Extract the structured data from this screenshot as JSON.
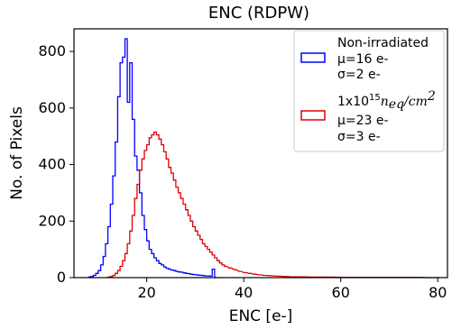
{
  "chart_data": {
    "type": "histogram",
    "title": "ENC (RDPW)",
    "xlabel": "ENC [e-]",
    "ylabel": "No. of Pixels",
    "xlim": [
      5,
      82
    ],
    "ylim": [
      0,
      880
    ],
    "xticks": [
      20,
      40,
      60,
      80
    ],
    "yticks": [
      0,
      200,
      400,
      600,
      800
    ],
    "grid": false,
    "legend_position": "top-right",
    "bin_width": 0.5,
    "series": [
      {
        "name": "Non-irradiated",
        "stats": [
          "μ=16 e-",
          "σ=2 e-"
        ],
        "color": "#0000ff",
        "x": [
          8,
          8.5,
          9,
          9.5,
          10,
          10.5,
          11,
          11.5,
          12,
          12.5,
          13,
          13.5,
          14,
          14.5,
          15,
          15.5,
          16,
          16.5,
          17,
          17.5,
          18,
          18.5,
          19,
          19.5,
          20,
          20.5,
          21,
          21.5,
          22,
          22.5,
          23,
          23.5,
          24,
          24.5,
          25,
          25.5,
          26,
          26.5,
          27,
          27.5,
          28,
          28.5,
          29,
          29.5,
          30,
          30.5,
          31,
          31.5,
          32,
          32.5,
          33,
          33.5,
          34
        ],
        "values": [
          2,
          4,
          8,
          15,
          25,
          45,
          75,
          120,
          180,
          260,
          360,
          480,
          640,
          760,
          780,
          845,
          620,
          760,
          560,
          430,
          380,
          300,
          220,
          170,
          130,
          100,
          85,
          70,
          60,
          50,
          45,
          38,
          33,
          30,
          27,
          25,
          22,
          20,
          19,
          17,
          15,
          14,
          12,
          11,
          10,
          9,
          8,
          7,
          6,
          6,
          5,
          30,
          0
        ]
      },
      {
        "name": "1x10^15 n_eq/cm^2",
        "stats": [
          "μ=23 e-",
          "σ=3 e-"
        ],
        "color": "#dd0000",
        "x": [
          12,
          12.5,
          13,
          13.5,
          14,
          14.5,
          15,
          15.5,
          16,
          16.5,
          17,
          17.5,
          18,
          18.5,
          19,
          19.5,
          20,
          20.5,
          21,
          21.5,
          22,
          22.5,
          23,
          23.5,
          24,
          24.5,
          25,
          25.5,
          26,
          26.5,
          27,
          27.5,
          28,
          28.5,
          29,
          29.5,
          30,
          30.5,
          31,
          31.5,
          32,
          32.5,
          33,
          33.5,
          34,
          34.5,
          35,
          35.5,
          36,
          37,
          38,
          39,
          40,
          41,
          42,
          43,
          44,
          45,
          46,
          47,
          48,
          50,
          52,
          54,
          56,
          58,
          60,
          62,
          64,
          66,
          68,
          70,
          72,
          74,
          76,
          78,
          80
        ],
        "values": [
          2,
          4,
          8,
          15,
          25,
          40,
          60,
          85,
          120,
          165,
          220,
          280,
          330,
          380,
          420,
          450,
          470,
          495,
          505,
          515,
          505,
          490,
          470,
          445,
          420,
          390,
          370,
          345,
          320,
          300,
          280,
          260,
          240,
          220,
          200,
          180,
          165,
          150,
          135,
          120,
          110,
          100,
          90,
          80,
          70,
          60,
          52,
          45,
          40,
          34,
          28,
          22,
          18,
          15,
          12,
          10,
          8,
          7,
          6,
          5,
          4,
          3,
          3,
          2,
          2,
          2,
          1,
          1,
          1,
          1,
          1,
          1,
          1,
          1,
          1,
          0,
          0
        ]
      }
    ]
  },
  "legend": {
    "entry1_label": "Non-irradiated",
    "entry1_mu": "μ=16 e-",
    "entry1_sigma": "σ=2 e-",
    "entry2_base": "1x10",
    "entry2_exp": "15",
    "entry2_n": "n",
    "entry2_sub": "eq",
    "entry2_rest": "/cm",
    "entry2_exp2": "2",
    "entry2_mu": "μ=23 e-",
    "entry2_sigma": "σ=3 e-"
  }
}
